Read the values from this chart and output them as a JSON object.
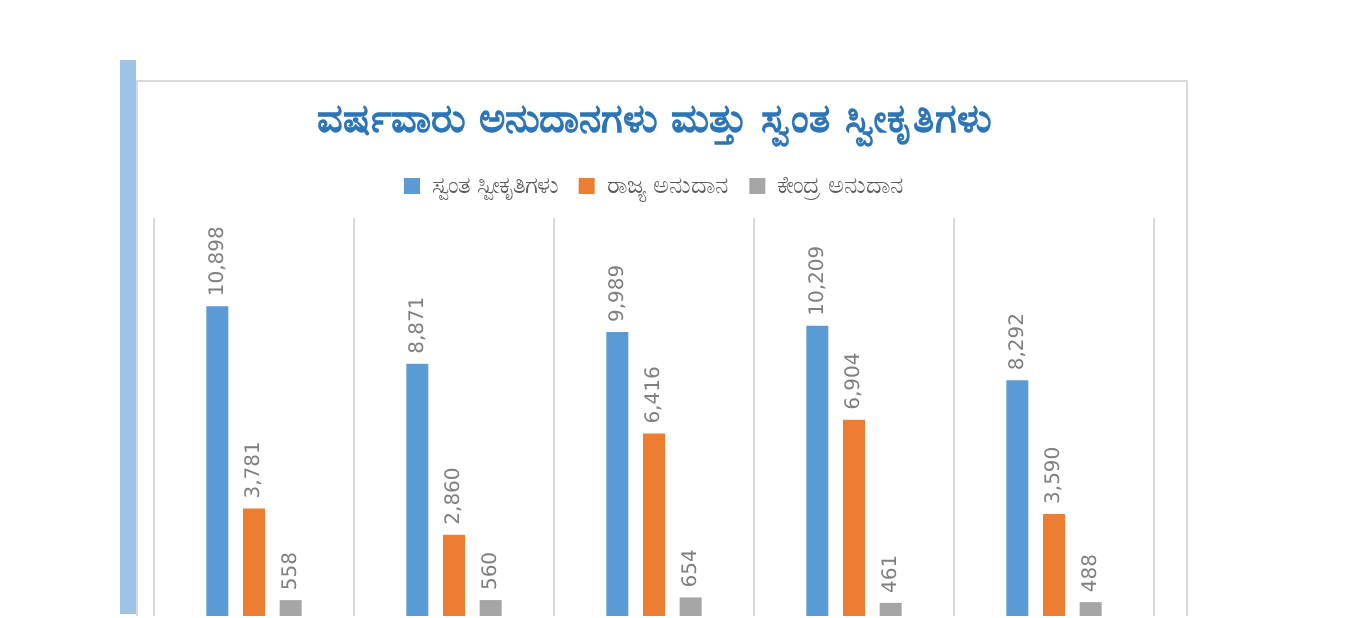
{
  "chart_data": {
    "type": "bar",
    "title": "ವರ್ಷವಾರು ಅನುದಾನಗಳು ಮತ್ತು ಸ್ವಂತ ಸ್ವೀಕೃತಿಗಳು",
    "categories": [
      null,
      null,
      null,
      null,
      null
    ],
    "series": [
      {
        "name": "ಸ್ವಂತ ಸ್ವೀಕೃತಿಗಳು",
        "color": "#5b9bd5",
        "values": [
          10898,
          8871,
          9989,
          10209,
          8292
        ],
        "value_labels": [
          "10,898",
          "8,871",
          "9,989",
          "10,209",
          "8,292"
        ]
      },
      {
        "name": "ರಾಜ್ಯ ಅನುದಾನ",
        "color": "#ed7d31",
        "values": [
          3781,
          2860,
          6416,
          6904,
          3590
        ],
        "value_labels": [
          "3,781",
          "2,860",
          "6,416",
          "6,904",
          "3,590"
        ]
      },
      {
        "name": "ಕೇಂದ್ರ ಅನುದಾನ",
        "color": "#a5a5a5",
        "values": [
          558,
          560,
          654,
          461,
          488
        ],
        "value_labels": [
          "558",
          "560",
          "654",
          "461",
          "488"
        ]
      }
    ],
    "grid": "x",
    "legend": "top",
    "tick_labels": false
  }
}
